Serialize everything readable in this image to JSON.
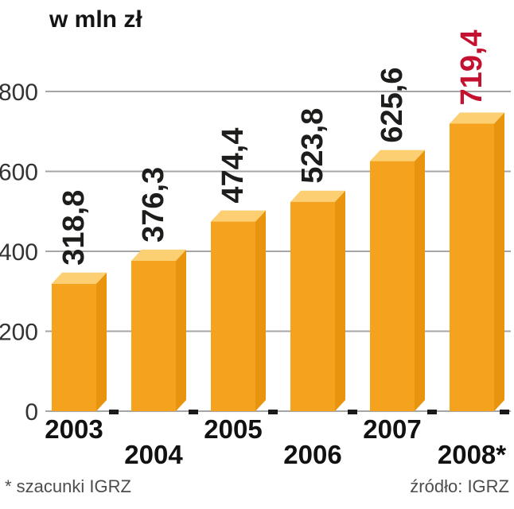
{
  "chart_data": {
    "type": "bar",
    "title": "w mln zł",
    "categories": [
      "2003",
      "2004",
      "2005",
      "2006",
      "2007",
      "2008*"
    ],
    "values": [
      318.8,
      376.3,
      474.4,
      523.8,
      625.6,
      719.4
    ],
    "value_labels": [
      "318,8",
      "376,3",
      "474,4",
      "523,8",
      "625,6",
      "719,4"
    ],
    "ylim": [
      0,
      800
    ],
    "ytick_step": 200,
    "yticks": [
      "0",
      "200",
      "400",
      "600",
      "800"
    ],
    "highlight_last": true,
    "legend": "none",
    "grid": "horizontal",
    "footnote_left": "* szacunki IGRZ",
    "footnote_right": "źródło: IGRZ",
    "colors": {
      "bar_front": "#F5A31F",
      "bar_top": "#FBCF72",
      "bar_side": "#E9940E",
      "grid": "#A6A6A6",
      "axis_tick": "#1a1a1a",
      "ytick_label": "#333333",
      "year_label": "#111111",
      "value_label": "#1d1d1b",
      "value_highlight": "#C4112F",
      "footer_text": "#4d4d4d"
    }
  }
}
